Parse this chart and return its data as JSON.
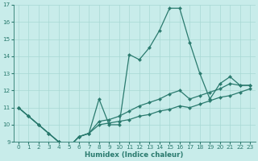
{
  "xlabel": "Humidex (Indice chaleur)",
  "x": [
    0,
    1,
    2,
    3,
    4,
    5,
    6,
    7,
    8,
    9,
    10,
    11,
    12,
    13,
    14,
    15,
    16,
    17,
    18,
    19,
    20,
    21,
    22,
    23
  ],
  "line_main": [
    11.0,
    10.5,
    10.0,
    9.5,
    9.0,
    8.7,
    9.3,
    9.5,
    11.5,
    10.0,
    10.0,
    14.1,
    13.8,
    14.5,
    15.5,
    16.8,
    16.8,
    14.8,
    13.0,
    11.5,
    12.4,
    12.8,
    12.3,
    12.3
  ],
  "line_low": [
    11.0,
    10.5,
    10.0,
    9.5,
    9.0,
    8.7,
    9.3,
    9.5,
    10.0,
    10.1,
    10.2,
    10.3,
    10.5,
    10.6,
    10.8,
    10.9,
    11.1,
    11.0,
    11.2,
    11.4,
    11.6,
    11.7,
    11.9,
    12.1
  ],
  "line_high": [
    11.0,
    10.5,
    10.0,
    9.5,
    9.0,
    8.7,
    9.3,
    9.5,
    10.2,
    10.3,
    10.5,
    10.8,
    11.1,
    11.3,
    11.5,
    11.8,
    12.0,
    11.5,
    11.7,
    11.9,
    12.1,
    12.4,
    12.3,
    12.3
  ],
  "line_color": "#2a7a6e",
  "bg_color": "#c8ecea",
  "grid_color": "#a8d8d4",
  "ylim": [
    9,
    17
  ],
  "xlim_lo": -0.5,
  "xlim_hi": 23.5,
  "yticks": [
    9,
    10,
    11,
    12,
    13,
    14,
    15,
    16,
    17
  ],
  "xticks": [
    0,
    1,
    2,
    3,
    4,
    5,
    6,
    7,
    8,
    9,
    10,
    11,
    12,
    13,
    14,
    15,
    16,
    17,
    18,
    19,
    20,
    21,
    22,
    23
  ],
  "tick_fontsize": 5.2,
  "label_fontsize": 6.2,
  "lw": 0.9,
  "markersize": 2.2
}
